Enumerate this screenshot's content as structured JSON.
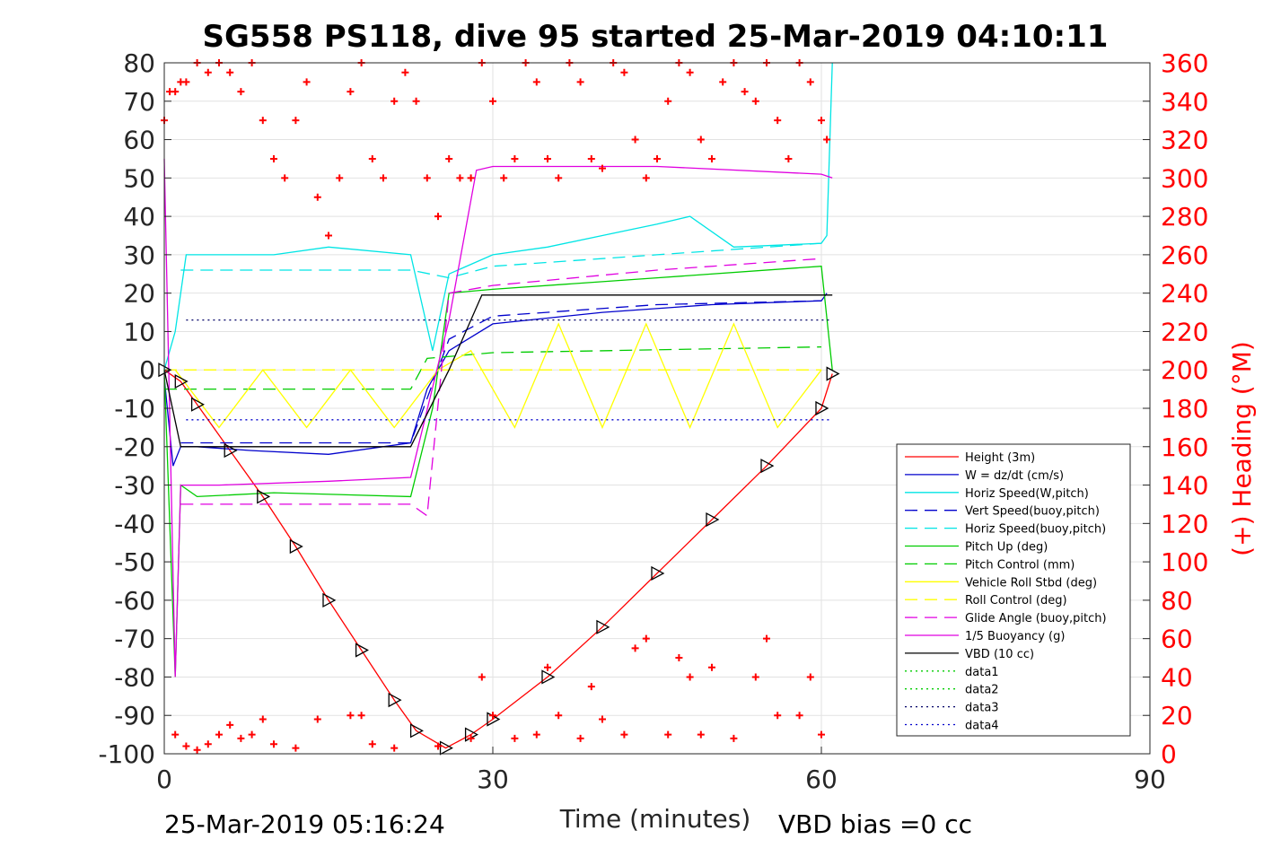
{
  "chart_data": {
    "type": "line",
    "title": "SG558 PS118, dive 95 started 25-Mar-2019 04:10:11",
    "xlabel": "Time (minutes)",
    "ylabel": "",
    "y2label": "(+) Heading (°M)",
    "xlim": [
      0,
      90
    ],
    "ylim": [
      -100,
      80
    ],
    "y2lim": [
      0,
      360
    ],
    "xticks": [
      "0",
      "30",
      "60",
      "90"
    ],
    "yticks": [
      "80",
      "70",
      "60",
      "50",
      "40",
      "30",
      "20",
      "10",
      "0",
      "-10",
      "-20",
      "-30",
      "-40",
      "-50",
      "-60",
      "-70",
      "-80",
      "-90",
      "-100"
    ],
    "y2ticks": [
      "360",
      "340",
      "320",
      "300",
      "280",
      "260",
      "240",
      "220",
      "200",
      "180",
      "160",
      "140",
      "120",
      "100",
      "80",
      "60",
      "40",
      "20",
      "0"
    ],
    "grid": true,
    "legend_position": "bottom-right",
    "footer_left": "25-Mar-2019 05:16:24",
    "footer_right": "VBD bias =0 cc",
    "legend": [
      {
        "name": "Height (3m)",
        "color": "#ff0000",
        "dash": "solid"
      },
      {
        "name": "W = dz/dt (cm/s)",
        "color": "#0000cc",
        "dash": "solid"
      },
      {
        "name": "Horiz Speed(W,pitch)",
        "color": "#00e5e5",
        "dash": "solid"
      },
      {
        "name": "Vert Speed(buoy,pitch)",
        "color": "#0000cc",
        "dash": "dashed"
      },
      {
        "name": "Horiz Speed(buoy,pitch)",
        "color": "#00e5e5",
        "dash": "dashed"
      },
      {
        "name": "Pitch Up (deg)",
        "color": "#00cc00",
        "dash": "solid"
      },
      {
        "name": "Pitch Control (mm)",
        "color": "#00cc00",
        "dash": "dashed"
      },
      {
        "name": "Vehicle Roll Stbd (deg)",
        "color": "#ffff00",
        "dash": "solid"
      },
      {
        "name": "Roll Control (deg)",
        "color": "#ffff00",
        "dash": "dashed"
      },
      {
        "name": "Glide Angle (buoy,pitch)",
        "color": "#e000e0",
        "dash": "dashed"
      },
      {
        "name": "1/5 Buoyancy (g)",
        "color": "#e000e0",
        "dash": "solid"
      },
      {
        "name": "VBD (10 cc)",
        "color": "#000000",
        "dash": "solid"
      },
      {
        "name": "data1",
        "color": "#00cc00",
        "dash": "dotted"
      },
      {
        "name": "data2",
        "color": "#00cc00",
        "dash": "dotted"
      },
      {
        "name": "data3",
        "color": "#000066",
        "dash": "dotted"
      },
      {
        "name": "data4",
        "color": "#0000cc",
        "dash": "dotted"
      }
    ],
    "series": [
      {
        "name": "Height (3m)",
        "axis": "left",
        "x": [
          0,
          1.5,
          3,
          6,
          9,
          12,
          15,
          18,
          21,
          23,
          25.7,
          28,
          30,
          35,
          40,
          45,
          50,
          55,
          60,
          61
        ],
        "y": [
          0,
          -3,
          -9,
          -21,
          -33,
          -46,
          -60,
          -73,
          -86,
          -94,
          -98.5,
          -95,
          -91,
          -80,
          -67,
          -53,
          -39,
          -25,
          -10,
          -1
        ]
      },
      {
        "name": "W = dz/dt (cm/s)",
        "axis": "left",
        "x": [
          0,
          0.8,
          1.5,
          3,
          8,
          15,
          22.5,
          24,
          26,
          30,
          40,
          50,
          60,
          60.5
        ],
        "y": [
          -2,
          -25,
          -20,
          -20,
          -21,
          -22,
          -19,
          -5,
          5,
          12,
          15,
          17,
          18,
          20
        ]
      },
      {
        "name": "Horiz Speed(W,pitch)",
        "axis": "left",
        "x": [
          0,
          1,
          2,
          5,
          10,
          15,
          22.5,
          24.5,
          26,
          30,
          35,
          40,
          45,
          48,
          52,
          60,
          60.5,
          61
        ],
        "y": [
          0,
          10,
          30,
          30,
          30,
          32,
          30,
          5,
          25,
          30,
          32,
          35,
          38,
          40,
          32,
          33,
          35,
          80
        ]
      },
      {
        "name": "Vert Speed(buoy,pitch)",
        "axis": "left",
        "x": [
          1.5,
          22.5,
          26,
          30,
          45,
          60
        ],
        "y": [
          -19,
          -19,
          8,
          14,
          17,
          18
        ]
      },
      {
        "name": "Horiz Speed(buoy,pitch)",
        "axis": "left",
        "x": [
          1.5,
          22.5,
          26,
          30,
          45,
          60
        ],
        "y": [
          26,
          26,
          24,
          27,
          30,
          33
        ]
      },
      {
        "name": "Pitch Up (deg)",
        "axis": "left",
        "x": [
          0,
          1,
          1.5,
          3,
          10,
          22.5,
          24.5,
          26,
          30,
          45,
          60,
          61
        ],
        "y": [
          0,
          -80,
          -30,
          -33,
          -32,
          -33,
          -10,
          20,
          21,
          24,
          27,
          0
        ]
      },
      {
        "name": "Pitch Control (mm)",
        "axis": "left",
        "x": [
          0,
          22.5,
          24,
          30,
          60
        ],
        "y": [
          -5,
          -5,
          3,
          4.5,
          6
        ]
      },
      {
        "name": "Vehicle Roll Stbd (deg)",
        "axis": "left",
        "x": [
          1,
          5,
          9,
          13,
          17,
          21,
          25,
          28,
          32,
          36,
          40,
          44,
          48,
          52,
          56,
          60
        ],
        "y": [
          0,
          -15,
          0,
          -15,
          0,
          -15,
          0,
          5,
          -15,
          12,
          -15,
          12,
          -15,
          12,
          -15,
          0
        ]
      },
      {
        "name": "Roll Control (deg)",
        "axis": "left",
        "x": [
          0,
          60
        ],
        "y": [
          0,
          0
        ]
      },
      {
        "name": "Glide Angle (buoy,pitch)",
        "axis": "left",
        "x": [
          1.5,
          22.5,
          24,
          26,
          30,
          45,
          60
        ],
        "y": [
          -35,
          -35,
          -38,
          20,
          22,
          26,
          29
        ]
      },
      {
        "name": "1/5 Buoyancy (g)",
        "axis": "left",
        "x": [
          0,
          1,
          1.5,
          5,
          15,
          22.5,
          26,
          28.5,
          30,
          45,
          60,
          61
        ],
        "y": [
          55,
          -80,
          -30,
          -30,
          -29,
          -28,
          13,
          52,
          53,
          53,
          51,
          50
        ]
      },
      {
        "name": "VBD (10 cc)",
        "axis": "left",
        "x": [
          0,
          1.5,
          22.5,
          26,
          29,
          61
        ],
        "y": [
          0,
          -20,
          -20,
          0,
          19.5,
          19.5
        ]
      },
      {
        "name": "data3",
        "axis": "left",
        "x": [
          2,
          61
        ],
        "y": [
          13,
          13
        ]
      },
      {
        "name": "data4",
        "axis": "left",
        "x": [
          2,
          61
        ],
        "y": [
          -13,
          -13
        ]
      }
    ],
    "heading_series": {
      "name": "(+) Heading",
      "axis": "right",
      "marker": "+",
      "color": "#ff0000",
      "x": [
        0,
        0.5,
        1,
        1.5,
        2,
        3,
        4,
        5,
        6,
        7,
        8,
        9,
        10,
        11,
        12,
        13,
        14,
        15,
        16,
        17,
        18,
        19,
        20,
        21,
        22,
        23,
        24,
        25,
        26,
        27,
        28,
        29,
        30,
        31,
        32,
        33,
        34,
        35,
        36,
        37,
        38,
        39,
        40,
        41,
        42,
        43,
        44,
        45,
        46,
        47,
        48,
        49,
        50,
        51,
        52,
        53,
        54,
        55,
        56,
        57,
        58,
        59,
        60,
        60.5
      ],
      "y": [
        330,
        345,
        345,
        350,
        350,
        360,
        355,
        360,
        355,
        345,
        360,
        330,
        310,
        300,
        330,
        350,
        290,
        270,
        300,
        345,
        360,
        310,
        300,
        340,
        355,
        340,
        300,
        280,
        310,
        300,
        300,
        360,
        340,
        300,
        310,
        360,
        350,
        310,
        300,
        360,
        350,
        310,
        305,
        360,
        355,
        320,
        300,
        310,
        340,
        360,
        355,
        320,
        310,
        350,
        360,
        345,
        340,
        360,
        330,
        310,
        360,
        350,
        330,
        320
      ]
    },
    "heading_ascent_series": {
      "name": "(+) Heading lower band",
      "axis": "right",
      "marker": "+",
      "color": "#ff0000",
      "x": [
        1,
        2,
        3,
        4,
        5,
        6,
        7,
        8,
        9,
        10,
        12,
        14,
        17,
        18,
        19,
        21,
        25,
        28,
        29,
        30,
        32,
        34,
        35,
        36,
        38,
        39,
        40,
        42,
        43,
        44,
        46,
        47,
        48,
        49,
        50,
        52,
        54,
        55,
        56,
        58,
        59,
        60
      ],
      "y": [
        10,
        4,
        2,
        5,
        10,
        15,
        8,
        10,
        18,
        5,
        3,
        18,
        20,
        20,
        5,
        3,
        4,
        8,
        40,
        20,
        8,
        10,
        45,
        20,
        8,
        35,
        18,
        10,
        55,
        60,
        10,
        50,
        40,
        10,
        45,
        8,
        40,
        60,
        20,
        20,
        40,
        10
      ]
    }
  }
}
